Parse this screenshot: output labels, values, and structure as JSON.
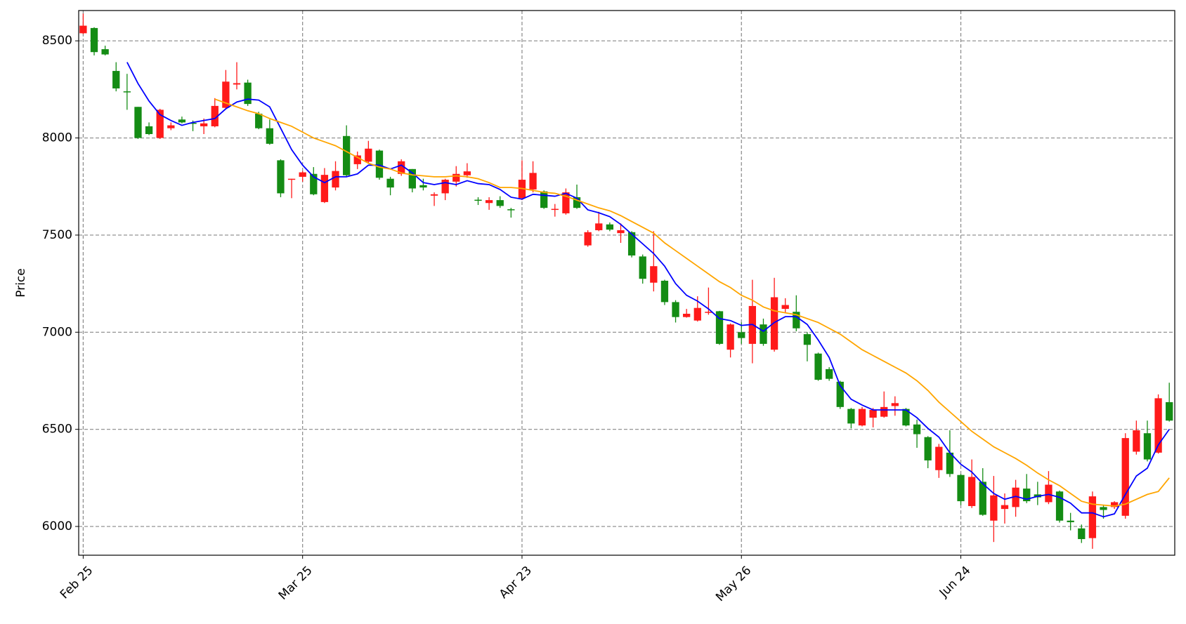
{
  "chart_data": {
    "type": "candlestick",
    "ylabel": "Price",
    "xlim": [
      -0.41,
      99.5
    ],
    "ylim": [
      5852,
      8656
    ],
    "yticks": [
      6000,
      6500,
      7000,
      7500,
      8000,
      8500
    ],
    "xticks": [
      {
        "value": 0,
        "label": "Feb 25"
      },
      {
        "value": 20,
        "label": "Mar 25"
      },
      {
        "value": 40,
        "label": "Apr 23"
      },
      {
        "value": 60,
        "label": "May 26"
      },
      {
        "value": 80,
        "label": "Jun 24"
      }
    ],
    "grid": true,
    "up_color": "#ff1a1a",
    "down_color": "#148c14",
    "open": [
      8539,
      8566,
      8457,
      8345,
      8240,
      8160,
      8060,
      8000,
      8050,
      8095,
      8078,
      8060,
      8060,
      8155,
      8275,
      8285,
      8125,
      8050,
      7885,
      7785,
      7800,
      7815,
      7670,
      7745,
      8010,
      7865,
      7878,
      7935,
      7790,
      7815,
      7840,
      7757,
      7703,
      7715,
      7775,
      7808,
      7682,
      7665,
      7680,
      7633,
      7690,
      7735,
      7725,
      7630,
      7612,
      7695,
      7447,
      7525,
      7555,
      7510,
      7515,
      7390,
      7255,
      7265,
      7155,
      7078,
      7060,
      7100,
      7108,
      6910,
      7000,
      6940,
      7040,
      6910,
      7120,
      7105,
      6990,
      6890,
      6810,
      6745,
      6605,
      6520,
      6560,
      6565,
      6620,
      6605,
      6525,
      6460,
      6290,
      6380,
      6265,
      6105,
      6230,
      6030,
      6090,
      6100,
      6195,
      6165,
      6125,
      6180,
      6030,
      5990,
      5940,
      6100,
      6100,
      6055,
      6385,
      6480,
      6380,
      6640
    ],
    "high": [
      8640,
      8570,
      8475,
      8390,
      8330,
      8160,
      8080,
      8150,
      8080,
      8110,
      8090,
      8100,
      8205,
      8350,
      8390,
      8300,
      8135,
      8095,
      7890,
      7790,
      7830,
      7850,
      7845,
      7880,
      8065,
      7930,
      7985,
      7940,
      7800,
      7890,
      7840,
      7790,
      7720,
      7790,
      7855,
      7870,
      7695,
      7695,
      7700,
      7640,
      7885,
      7880,
      7730,
      7660,
      7740,
      7760,
      7525,
      7620,
      7565,
      7560,
      7520,
      7400,
      7520,
      7270,
      7165,
      7120,
      7185,
      7230,
      7110,
      7045,
      7050,
      7270,
      7070,
      7280,
      7175,
      7190,
      7000,
      6895,
      6820,
      6750,
      6610,
      6615,
      6610,
      6695,
      6670,
      6610,
      6550,
      6465,
      6425,
      6495,
      6270,
      6345,
      6300,
      6260,
      6170,
      6240,
      6270,
      6230,
      6285,
      6185,
      6070,
      6010,
      6180,
      6110,
      6130,
      6480,
      6545,
      6545,
      6680,
      6740
    ],
    "low": [
      8535,
      8425,
      8425,
      8240,
      8145,
      7995,
      8015,
      7995,
      8040,
      8075,
      8035,
      8020,
      8055,
      8150,
      8250,
      8165,
      8045,
      7965,
      7695,
      7690,
      7775,
      7705,
      7665,
      7730,
      7800,
      7840,
      7870,
      7785,
      7705,
      7805,
      7720,
      7730,
      7650,
      7680,
      7750,
      7795,
      7655,
      7630,
      7640,
      7590,
      7680,
      7720,
      7635,
      7595,
      7605,
      7635,
      7440,
      7520,
      7520,
      7460,
      7385,
      7250,
      7210,
      7140,
      7050,
      7075,
      7055,
      7090,
      6935,
      6870,
      6940,
      6840,
      6930,
      6900,
      7100,
      7005,
      6850,
      6750,
      6750,
      6605,
      6505,
      6515,
      6510,
      6560,
      6570,
      6515,
      6405,
      6300,
      6250,
      6255,
      6110,
      6095,
      6055,
      5920,
      6015,
      6050,
      6120,
      6110,
      6115,
      6020,
      5980,
      5915,
      5885,
      6040,
      6090,
      6040,
      6370,
      6335,
      6375,
      6540
    ],
    "close": [
      8578,
      8442,
      8430,
      8255,
      8235,
      8000,
      8020,
      8145,
      8065,
      8080,
      8075,
      8075,
      8165,
      8290,
      8282,
      8175,
      8050,
      7970,
      7715,
      7790,
      7823,
      7710,
      7810,
      7830,
      7808,
      7910,
      7945,
      7795,
      7745,
      7880,
      7740,
      7745,
      7710,
      7785,
      7815,
      7828,
      7678,
      7680,
      7650,
      7628,
      7785,
      7820,
      7640,
      7635,
      7720,
      7640,
      7515,
      7560,
      7528,
      7525,
      7395,
      7275,
      7340,
      7155,
      7078,
      7095,
      7125,
      7105,
      6940,
      7040,
      6970,
      7135,
      6940,
      7180,
      7140,
      7020,
      6935,
      6755,
      6760,
      6615,
      6530,
      6605,
      6600,
      6615,
      6635,
      6520,
      6475,
      6340,
      6410,
      6270,
      6130,
      6255,
      6060,
      6160,
      6110,
      6200,
      6130,
      6150,
      6215,
      6030,
      6022,
      5935,
      6155,
      6085,
      6125,
      6455,
      6495,
      6345,
      6660,
      6545
    ],
    "lines": [
      {
        "color": "#0000ff",
        "values": [
          null,
          null,
          null,
          null,
          8390,
          8280,
          8190,
          8120,
          8090,
          8065,
          8080,
          8090,
          8100,
          8150,
          8185,
          8200,
          8195,
          8160,
          8050,
          7940,
          7860,
          7800,
          7770,
          7800,
          7800,
          7815,
          7860,
          7860,
          7840,
          7860,
          7820,
          7770,
          7760,
          7770,
          7760,
          7780,
          7765,
          7760,
          7735,
          7695,
          7685,
          7710,
          7705,
          7700,
          7715,
          7690,
          7630,
          7615,
          7595,
          7555,
          7505,
          7455,
          7405,
          7340,
          7250,
          7190,
          7160,
          7120,
          7070,
          7060,
          7035,
          7040,
          7005,
          7050,
          7080,
          7080,
          7040,
          6960,
          6870,
          6725,
          6655,
          6625,
          6600,
          6600,
          6600,
          6600,
          6560,
          6505,
          6460,
          6380,
          6320,
          6280,
          6220,
          6170,
          6140,
          6155,
          6140,
          6155,
          6165,
          6150,
          6120,
          6070,
          6070,
          6050,
          6065,
          6165,
          6260,
          6300,
          6420,
          6500
        ]
      },
      {
        "color": "#ffa500",
        "values": [
          null,
          null,
          null,
          null,
          null,
          null,
          null,
          null,
          null,
          null,
          null,
          null,
          8200,
          8180,
          8160,
          8140,
          8125,
          8100,
          8080,
          8060,
          8030,
          8000,
          7980,
          7960,
          7930,
          7900,
          7870,
          7850,
          7840,
          7820,
          7810,
          7805,
          7800,
          7800,
          7805,
          7800,
          7790,
          7770,
          7745,
          7745,
          7740,
          7730,
          7720,
          7715,
          7700,
          7680,
          7660,
          7640,
          7625,
          7600,
          7570,
          7540,
          7510,
          7460,
          7420,
          7380,
          7340,
          7300,
          7260,
          7230,
          7190,
          7165,
          7130,
          7110,
          7100,
          7090,
          7070,
          7050,
          7020,
          6990,
          6950,
          6910,
          6880,
          6850,
          6820,
          6790,
          6750,
          6700,
          6640,
          6590,
          6540,
          6490,
          6450,
          6410,
          6380,
          6350,
          6315,
          6275,
          6240,
          6210,
          6170,
          6130,
          6115,
          6110,
          6105,
          6115,
          6140,
          6165,
          6180,
          6250
        ]
      }
    ]
  }
}
